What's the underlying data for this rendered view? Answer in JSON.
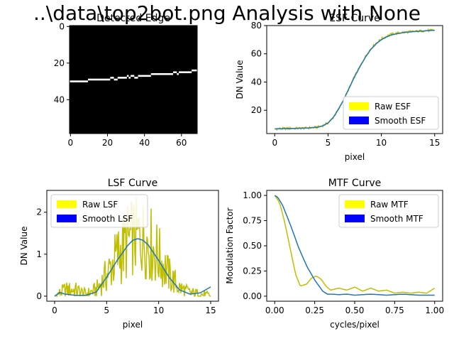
{
  "figure": {
    "suptitle": "..\\data\\top2bot.png Analysis with None"
  },
  "chart_data": [
    {
      "type": "heatmap",
      "title": "Detected Edge",
      "xlabel": "",
      "ylabel": "",
      "xlim": [
        -0.5,
        68.5
      ],
      "ylim": [
        58.5,
        -0.5
      ],
      "xticks": [
        0,
        20,
        40,
        60
      ],
      "yticks": [
        0,
        20,
        40
      ],
      "background": "black",
      "edge_color": "white",
      "edge_segments": [
        {
          "x0": 0,
          "x1": 9,
          "y": 30
        },
        {
          "x0": 10,
          "x1": 21,
          "y": 29
        },
        {
          "x0": 22,
          "x1": 23,
          "y": 28
        },
        {
          "x0": 24,
          "x1": 25,
          "y": 29
        },
        {
          "x0": 26,
          "x1": 30,
          "y": 28
        },
        {
          "x0": 31,
          "x1": 31,
          "y": 27
        },
        {
          "x0": 32,
          "x1": 32,
          "y": 28
        },
        {
          "x0": 33,
          "x1": 34,
          "y": 27
        },
        {
          "x0": 35,
          "x1": 36,
          "y": 28
        },
        {
          "x0": 37,
          "x1": 43,
          "y": 27
        },
        {
          "x0": 44,
          "x1": 55,
          "y": 26
        },
        {
          "x0": 56,
          "x1": 57,
          "y": 25
        },
        {
          "x0": 58,
          "x1": 58,
          "y": 26
        },
        {
          "x0": 59,
          "x1": 65,
          "y": 25
        },
        {
          "x0": 66,
          "x1": 68,
          "y": 24
        }
      ]
    },
    {
      "type": "line",
      "title": "ESF Curve",
      "xlabel": "pixel",
      "ylabel": "DN Value",
      "xlim": [
        -0.75,
        15.75
      ],
      "ylim": [
        3.5,
        80
      ],
      "xticks": [
        0,
        5,
        10,
        15
      ],
      "yticks": [
        20,
        40,
        60,
        80
      ],
      "legend": {
        "placement": "lower-right",
        "entries": [
          {
            "label": "Raw ESF",
            "color": "#ffff00"
          },
          {
            "label": "Smooth ESF",
            "color": "#0000ff"
          }
        ]
      },
      "series": [
        {
          "id": "raw",
          "color": "#bfbf00",
          "x": [
            0,
            1,
            2,
            3,
            4,
            4.5,
            5,
            5.5,
            6,
            6.5,
            7,
            7.5,
            8,
            8.5,
            9,
            9.5,
            10,
            10.5,
            11,
            12,
            13,
            14,
            15
          ],
          "y": [
            6.8,
            7.1,
            7.2,
            7.4,
            8.0,
            9.0,
            11.0,
            15.0,
            21.0,
            28.0,
            36.0,
            44.0,
            51.0,
            58.0,
            63.5,
            67.5,
            70.5,
            72.5,
            74.0,
            75.2,
            75.8,
            76.3,
            76.8
          ],
          "noise": 0.8
        },
        {
          "id": "smooth",
          "color": "#1f77b4",
          "x": [
            0,
            1,
            2,
            3,
            4,
            4.5,
            5,
            5.5,
            6,
            6.5,
            7,
            7.5,
            8,
            8.5,
            9,
            9.5,
            10,
            10.5,
            11,
            12,
            13,
            14,
            15
          ],
          "y": [
            6.8,
            7.0,
            7.2,
            7.4,
            8.0,
            9.0,
            11.0,
            15.0,
            21.0,
            28.0,
            36.0,
            44.0,
            51.0,
            57.5,
            63.0,
            67.0,
            70.0,
            72.0,
            73.5,
            75.0,
            75.7,
            76.2,
            76.7
          ],
          "noise": 0
        }
      ]
    },
    {
      "type": "line",
      "title": "LSF Curve",
      "xlabel": "pixel",
      "ylabel": "DN Value",
      "xlim": [
        -0.75,
        15.75
      ],
      "ylim": [
        -0.12,
        2.52
      ],
      "xticks": [
        0,
        5,
        10,
        15
      ],
      "yticks": [
        0,
        1,
        2
      ],
      "legend": {
        "placement": "upper-left",
        "entries": [
          {
            "label": "Raw LSF",
            "color": "#ffff00"
          },
          {
            "label": "Smooth LSF",
            "color": "#0000ff"
          }
        ]
      },
      "series": [
        {
          "id": "raw",
          "color": "#bfbf00",
          "x": [
            0,
            1,
            2,
            3,
            4,
            5,
            6,
            7,
            7.5,
            8,
            8.5,
            9,
            10,
            11,
            12,
            13,
            14,
            15
          ],
          "y": [
            0.0,
            0.15,
            0.15,
            0.05,
            0.15,
            0.5,
            0.95,
            1.3,
            1.4,
            1.4,
            1.4,
            1.3,
            0.95,
            0.5,
            0.2,
            0.08,
            0.05,
            0.0
          ],
          "noise": 0.6
        },
        {
          "id": "smooth",
          "color": "#1f77b4",
          "x": [
            0,
            0.5,
            1,
            2,
            3,
            4,
            5,
            6,
            7,
            7.5,
            8,
            8.5,
            9,
            10,
            11,
            12,
            13,
            14,
            15
          ],
          "y": [
            0.0,
            0.09,
            0.05,
            0.02,
            0.02,
            0.1,
            0.45,
            0.85,
            1.2,
            1.33,
            1.37,
            1.33,
            1.22,
            0.85,
            0.45,
            0.15,
            0.05,
            0.08,
            0.22
          ],
          "noise": 0
        }
      ]
    },
    {
      "type": "line",
      "title": "MTF Curve",
      "xlabel": "cycles/pixel",
      "ylabel": "Modulation Factor",
      "xlim": [
        -0.05,
        1.05
      ],
      "ylim": [
        -0.05,
        1.05
      ],
      "xticks": [
        0.0,
        0.25,
        0.5,
        0.75,
        1.0
      ],
      "yticks": [
        0.0,
        0.25,
        0.5,
        0.75,
        1.0
      ],
      "legend": {
        "placement": "upper-right",
        "entries": [
          {
            "label": "Raw MTF",
            "color": "#ffff00"
          },
          {
            "label": "Smooth MTF",
            "color": "#0000ff"
          }
        ]
      },
      "series": [
        {
          "id": "raw",
          "color": "#bfbf00",
          "x": [
            0,
            0.03,
            0.06,
            0.1,
            0.13,
            0.16,
            0.2,
            0.23,
            0.26,
            0.29,
            0.32,
            0.35,
            0.4,
            0.45,
            0.5,
            0.55,
            0.6,
            0.65,
            0.7,
            0.75,
            0.8,
            0.85,
            0.9,
            0.95,
            1.0
          ],
          "y": [
            1.0,
            0.93,
            0.75,
            0.45,
            0.22,
            0.1,
            0.12,
            0.18,
            0.2,
            0.17,
            0.1,
            0.06,
            0.08,
            0.06,
            0.09,
            0.05,
            0.08,
            0.05,
            0.06,
            0.03,
            0.04,
            0.03,
            0.04,
            0.03,
            0.08
          ],
          "noise": 0
        },
        {
          "id": "smooth",
          "color": "#1f77b4",
          "x": [
            0,
            0.02,
            0.05,
            0.1,
            0.15,
            0.2,
            0.25,
            0.3,
            0.33,
            0.36,
            0.4,
            0.45,
            0.5,
            0.55,
            0.6,
            0.7,
            0.8,
            0.9,
            1.0
          ],
          "y": [
            1.0,
            0.98,
            0.9,
            0.7,
            0.48,
            0.3,
            0.16,
            0.05,
            0.02,
            0.02,
            0.015,
            0.02,
            0.01,
            0.015,
            0.02,
            0.01,
            0.02,
            0.01,
            0.01
          ],
          "noise": 0
        }
      ]
    }
  ]
}
